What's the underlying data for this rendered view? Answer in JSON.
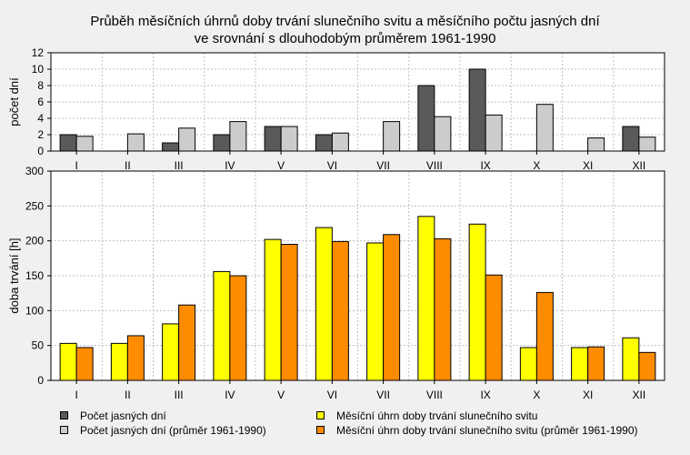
{
  "title_line1": "Průběh měsíčních úhrnů doby trvání slunečního svitu a měsíčního počtu jasných dní",
  "title_line2": "ve srovnání s dlouhodobým průměrem 1961-1990",
  "colors": {
    "background": "#f0f0f0",
    "plot_bg": "#ffffff",
    "grid": "#c0c0c0",
    "dark_gray": "#5a5a5a",
    "light_gray": "#cccccc",
    "yellow": "#ffff00",
    "orange": "#ff8c00"
  },
  "legend": {
    "items": [
      {
        "label": "Počet jasných dní",
        "color": "#5a5a5a"
      },
      {
        "label": "Počet jasných dní (průměr 1961-1990)",
        "color": "#cccccc"
      },
      {
        "label": "Měsíční úhrn doby trvání slunečního svitu",
        "color": "#ffff00"
      },
      {
        "label": "Měsíční úhrn doby trvání slunečního svitu (průměr 1961-1990)",
        "color": "#ff8c00"
      }
    ]
  },
  "chart_data": [
    {
      "type": "bar",
      "categories": [
        "I",
        "II",
        "III",
        "IV",
        "V",
        "VI",
        "VII",
        "VIII",
        "IX",
        "X",
        "XI",
        "XII"
      ],
      "ylabel": "počet dní",
      "ylim": [
        0,
        12
      ],
      "yticks": [
        0,
        2,
        4,
        6,
        8,
        10,
        12
      ],
      "grid": true,
      "series": [
        {
          "name": "Počet jasných dní",
          "color": "#5a5a5a",
          "values": [
            2,
            0,
            1,
            2,
            3,
            2,
            0,
            8,
            10,
            0,
            0,
            3
          ]
        },
        {
          "name": "Počet jasných dní (průměr 1961-1990)",
          "color": "#cccccc",
          "values": [
            1.8,
            2.1,
            2.8,
            3.6,
            3.0,
            2.2,
            3.6,
            4.2,
            4.4,
            5.7,
            1.6,
            1.7
          ]
        }
      ]
    },
    {
      "type": "bar",
      "categories": [
        "I",
        "II",
        "III",
        "IV",
        "V",
        "VI",
        "VII",
        "VIII",
        "IX",
        "X",
        "XI",
        "XII"
      ],
      "ylabel": "doba trvání [h]",
      "ylim": [
        0,
        300
      ],
      "yticks": [
        0,
        50,
        100,
        150,
        200,
        250,
        300
      ],
      "grid": true,
      "series": [
        {
          "name": "Měsíční úhrn doby trvání slunečního svitu",
          "color": "#ffff00",
          "values": [
            53,
            53,
            81,
            156,
            202,
            219,
            197,
            235,
            224,
            47,
            47,
            61
          ]
        },
        {
          "name": "Měsíční úhrn doby trvání slunečního svitu (průměr 1961-1990)",
          "color": "#ff8c00",
          "values": [
            47,
            64,
            108,
            150,
            195,
            199,
            209,
            203,
            151,
            126,
            48,
            40
          ]
        }
      ]
    }
  ]
}
